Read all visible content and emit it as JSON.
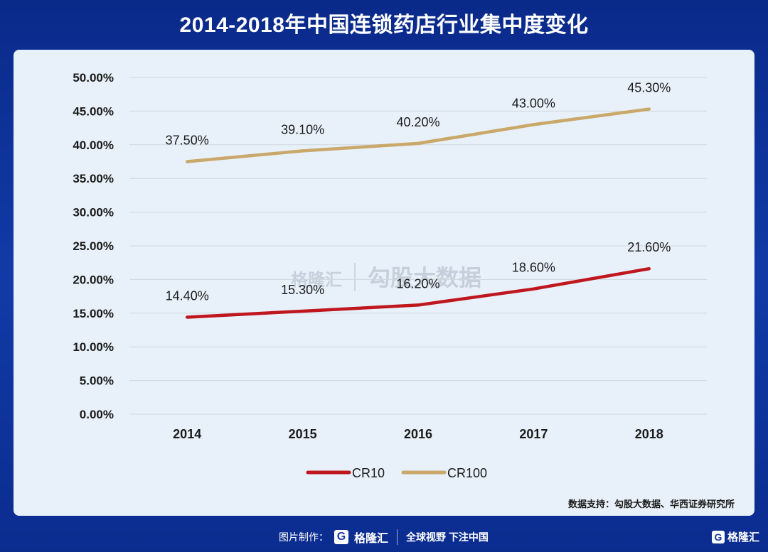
{
  "page": {
    "title": "2014-2018年中国连锁药店行业集中度变化",
    "source": "数据支持：勾股大数据、华西证券研究所",
    "watermark_brand": "格隆汇",
    "watermark_text": "勾股大数据",
    "footer_label": "图片制作：",
    "footer_brand": "格隆汇",
    "footer_slogan": "全球视野 下注中国",
    "footer_right_brand": "格隆汇",
    "icon_name": "g-logo-icon"
  },
  "chart_data": {
    "type": "line",
    "title": "2014-2018年中国连锁药店行业集中度变化",
    "x": [
      "2014",
      "2015",
      "2016",
      "2017",
      "2018"
    ],
    "series": [
      {
        "name": "CR10",
        "values": [
          14.4,
          15.3,
          16.2,
          18.6,
          21.6
        ],
        "labels": [
          "14.40%",
          "15.30%",
          "16.20%",
          "18.60%",
          "21.60%"
        ],
        "color": "#c0161e"
      },
      {
        "name": "CR100",
        "values": [
          37.5,
          39.1,
          40.2,
          43.0,
          45.3
        ],
        "labels": [
          "37.50%",
          "39.10%",
          "40.20%",
          "43.00%",
          "45.30%"
        ],
        "color": "#c9a86a"
      }
    ],
    "ylim": [
      0,
      50
    ],
    "yticks": [
      "0.00%",
      "5.00%",
      "10.00%",
      "15.00%",
      "20.00%",
      "25.00%",
      "30.00%",
      "35.00%",
      "40.00%",
      "45.00%",
      "50.00%"
    ],
    "grid": true,
    "legend_position": "bottom"
  }
}
